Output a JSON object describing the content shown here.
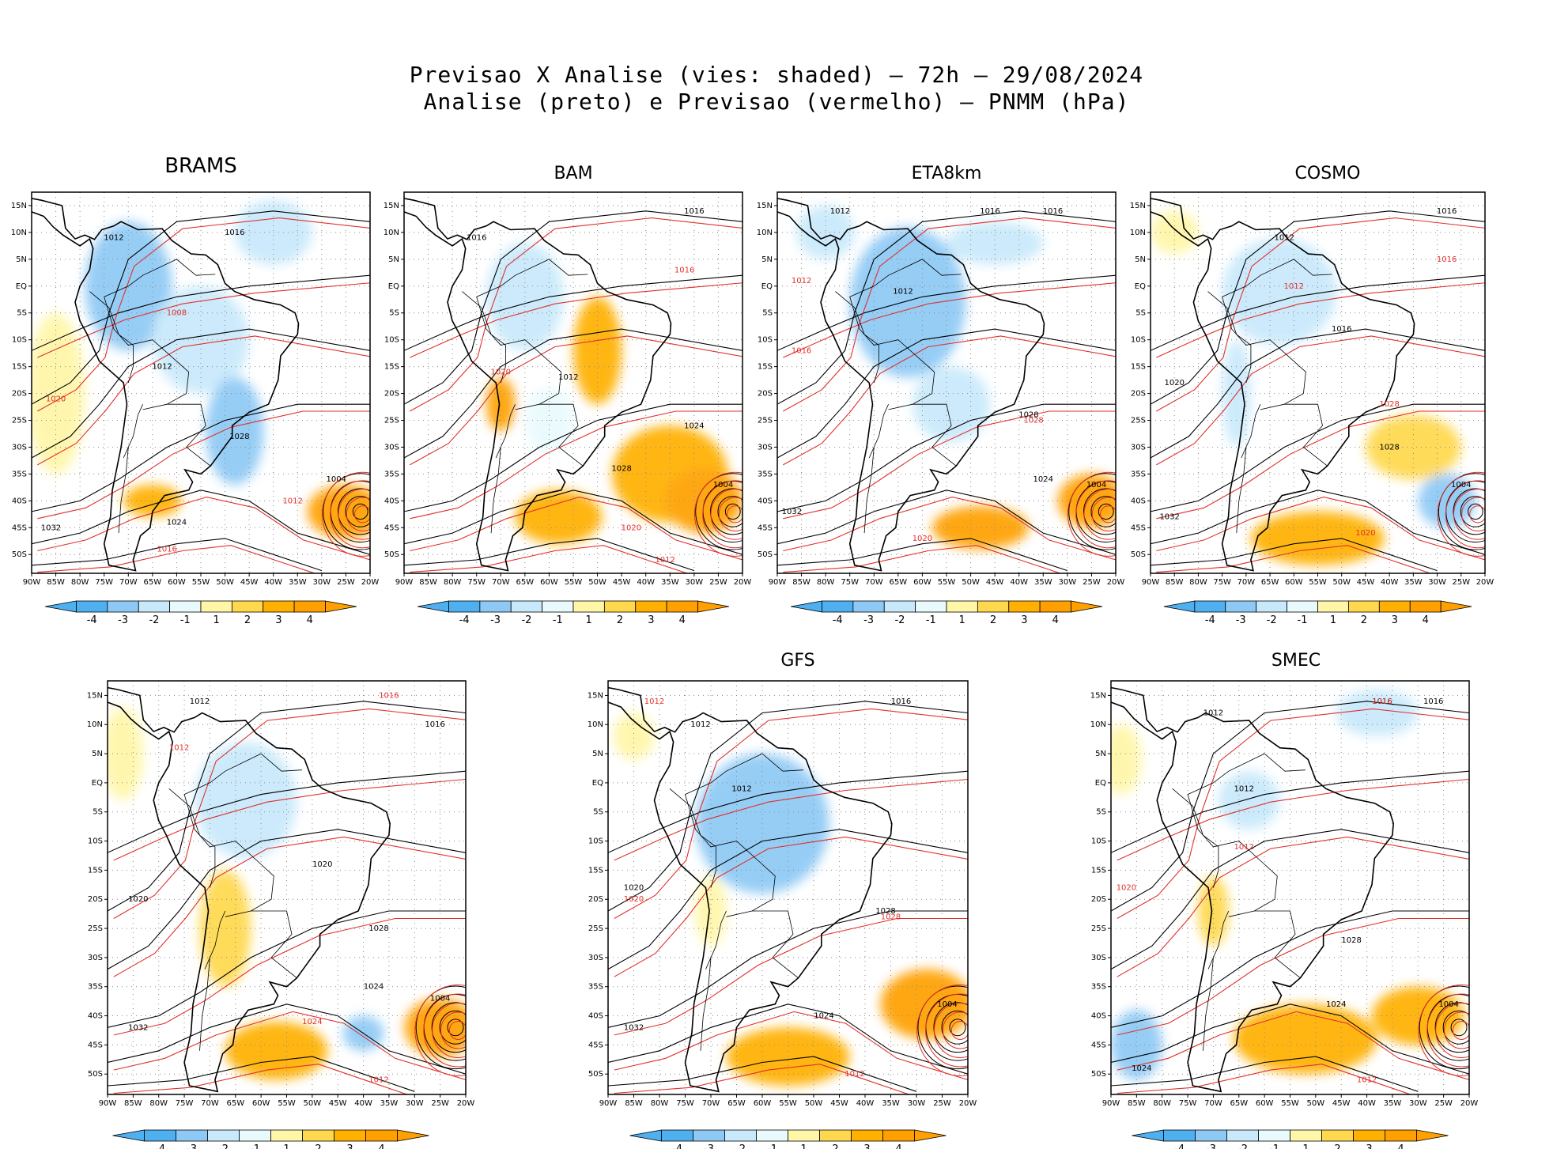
{
  "figure": {
    "title_line1": "Previsao X Analise (vies: shaded) – 72h – 29/08/2024",
    "title_line2": "Analise (preto) e Previsao (vermelho) – PNMM (hPa)"
  },
  "axes": {
    "lon_labels": [
      "90W",
      "85W",
      "80W",
      "75W",
      "70W",
      "65W",
      "60W",
      "55W",
      "50W",
      "45W",
      "40W",
      "35W",
      "30W",
      "25W",
      "20W"
    ],
    "lat_labels": [
      "15N",
      "10N",
      "5N",
      "EQ",
      "5S",
      "10S",
      "15S",
      "20S",
      "25S",
      "30S",
      "35S",
      "40S",
      "45S",
      "50S"
    ]
  },
  "colorbar": {
    "labels": [
      "-4",
      "-3",
      "-2",
      "-1",
      "1",
      "2",
      "3",
      "4"
    ],
    "colors": [
      "#4fb0f0",
      "#8ec9f5",
      "#c8e9fb",
      "#e9fafd",
      "#ffffff",
      "#fff6a8",
      "#ffd84d",
      "#ffb000",
      "#ffa000"
    ]
  },
  "styles": {
    "analysis_color": "#000000",
    "forecast_color": "#e0302b",
    "grid_color": "#8a8a8a",
    "neg_shade": "#6ab8f0",
    "neg_shade_light": "#c6e6fb",
    "pos_shade": "#ffbf1f",
    "pos_shade_light": "#fff09a"
  },
  "panels": [
    {
      "name": "BRAMS",
      "bias": [
        {
          "lon": -70,
          "lat": 0,
          "rx": 9,
          "ry": 12,
          "v": -3
        },
        {
          "lon": -55,
          "lat": -10,
          "rx": 10,
          "ry": 10,
          "v": -2
        },
        {
          "lon": -48,
          "lat": -27,
          "rx": 6,
          "ry": 10,
          "v": -3
        },
        {
          "lon": -25,
          "lat": -42,
          "rx": 8,
          "ry": 5,
          "v": 4
        },
        {
          "lon": -65,
          "lat": -40,
          "rx": 6,
          "ry": 3,
          "v": 3
        },
        {
          "lon": -85,
          "lat": -20,
          "rx": 6,
          "ry": 15,
          "v": 1
        },
        {
          "lon": -40,
          "lat": 10,
          "rx": 8,
          "ry": 6,
          "v": -2
        }
      ],
      "labels": [
        {
          "lon": -73,
          "lat": 9,
          "t": "1012",
          "c": "a"
        },
        {
          "lon": -48,
          "lat": 10,
          "t": "1016",
          "c": "a"
        },
        {
          "lon": -63,
          "lat": -15,
          "t": "1012",
          "c": "a"
        },
        {
          "lon": -47,
          "lat": -28,
          "t": "1028",
          "c": "a"
        },
        {
          "lon": -27,
          "lat": -36,
          "t": "1004",
          "c": "a"
        },
        {
          "lon": -60,
          "lat": -44,
          "t": "1024",
          "c": "a"
        },
        {
          "lon": -86,
          "lat": -45,
          "t": "1032",
          "c": "a"
        },
        {
          "lon": -60,
          "lat": -5,
          "t": "1008",
          "c": "f"
        },
        {
          "lon": -85,
          "lat": -21,
          "t": "1020",
          "c": "f"
        },
        {
          "lon": -36,
          "lat": -40,
          "t": "1012",
          "c": "f"
        },
        {
          "lon": -62,
          "lat": -49,
          "t": "1016",
          "c": "f"
        }
      ]
    },
    {
      "name": "BAM",
      "bias": [
        {
          "lon": -65,
          "lat": -2,
          "rx": 8,
          "ry": 10,
          "v": -2
        },
        {
          "lon": -50,
          "lat": -12,
          "rx": 5,
          "ry": 10,
          "v": 3
        },
        {
          "lon": -35,
          "lat": -35,
          "rx": 12,
          "ry": 9,
          "v": 3
        },
        {
          "lon": -28,
          "lat": -40,
          "rx": 8,
          "ry": 6,
          "v": 4
        },
        {
          "lon": -58,
          "lat": -43,
          "rx": 9,
          "ry": 5,
          "v": 3
        },
        {
          "lon": -70,
          "lat": -22,
          "rx": 3,
          "ry": 5,
          "v": 4
        },
        {
          "lon": -60,
          "lat": -25,
          "rx": 5,
          "ry": 6,
          "v": -1
        }
      ],
      "labels": [
        {
          "lon": -30,
          "lat": 14,
          "t": "1016",
          "c": "a"
        },
        {
          "lon": -75,
          "lat": 9,
          "t": "1016",
          "c": "a"
        },
        {
          "lon": -56,
          "lat": -17,
          "t": "1012",
          "c": "a"
        },
        {
          "lon": -30,
          "lat": -26,
          "t": "1024",
          "c": "a"
        },
        {
          "lon": -45,
          "lat": -34,
          "t": "1028",
          "c": "a"
        },
        {
          "lon": -24,
          "lat": -37,
          "t": "1004",
          "c": "a"
        },
        {
          "lon": -70,
          "lat": -16,
          "t": "1020",
          "c": "f"
        },
        {
          "lon": -32,
          "lat": 3,
          "t": "1016",
          "c": "f"
        },
        {
          "lon": -43,
          "lat": -45,
          "t": "1020",
          "c": "f"
        },
        {
          "lon": -36,
          "lat": -51,
          "t": "1012",
          "c": "f"
        }
      ]
    },
    {
      "name": "ETA8km",
      "bias": [
        {
          "lon": -63,
          "lat": -3,
          "rx": 12,
          "ry": 14,
          "v": -3
        },
        {
          "lon": -54,
          "lat": -22,
          "rx": 8,
          "ry": 7,
          "v": -2
        },
        {
          "lon": -48,
          "lat": -45,
          "rx": 10,
          "ry": 4,
          "v": 4
        },
        {
          "lon": -25,
          "lat": -40,
          "rx": 7,
          "ry": 5,
          "v": 4
        },
        {
          "lon": -45,
          "lat": 8,
          "rx": 10,
          "ry": 4,
          "v": -2
        },
        {
          "lon": -80,
          "lat": 10,
          "rx": 6,
          "ry": 5,
          "v": -2
        }
      ],
      "labels": [
        {
          "lon": -77,
          "lat": 14,
          "t": "1012",
          "c": "a"
        },
        {
          "lon": -46,
          "lat": 14,
          "t": "1016",
          "c": "a"
        },
        {
          "lon": -33,
          "lat": 14,
          "t": "1016",
          "c": "a"
        },
        {
          "lon": -64,
          "lat": -1,
          "t": "1012",
          "c": "a"
        },
        {
          "lon": -38,
          "lat": -24,
          "t": "1028",
          "c": "a"
        },
        {
          "lon": -35,
          "lat": -36,
          "t": "1024",
          "c": "a"
        },
        {
          "lon": -24,
          "lat": -37,
          "t": "1004",
          "c": "a"
        },
        {
          "lon": -87,
          "lat": -42,
          "t": "1032",
          "c": "a"
        },
        {
          "lon": -85,
          "lat": 1,
          "t": "1012",
          "c": "f"
        },
        {
          "lon": -85,
          "lat": -12,
          "t": "1016",
          "c": "f"
        },
        {
          "lon": -60,
          "lat": -47,
          "t": "1020",
          "c": "f"
        },
        {
          "lon": -37,
          "lat": -25,
          "t": "1028",
          "c": "f"
        }
      ]
    },
    {
      "name": "COSMO",
      "bias": [
        {
          "lon": -63,
          "lat": -1,
          "rx": 12,
          "ry": 10,
          "v": -2
        },
        {
          "lon": -55,
          "lat": -47,
          "rx": 14,
          "ry": 5,
          "v": 3
        },
        {
          "lon": -35,
          "lat": -30,
          "rx": 10,
          "ry": 6,
          "v": 2
        },
        {
          "lon": -28,
          "lat": -40,
          "rx": 6,
          "ry": 5,
          "v": -3
        },
        {
          "lon": -72,
          "lat": -20,
          "rx": 3,
          "ry": 10,
          "v": -2
        },
        {
          "lon": -85,
          "lat": 10,
          "rx": 5,
          "ry": 4,
          "v": 1
        }
      ],
      "labels": [
        {
          "lon": -28,
          "lat": 14,
          "t": "1016",
          "c": "a"
        },
        {
          "lon": -62,
          "lat": 9,
          "t": "1012",
          "c": "a"
        },
        {
          "lon": -50,
          "lat": -8,
          "t": "1016",
          "c": "a"
        },
        {
          "lon": -40,
          "lat": -30,
          "t": "1028",
          "c": "a"
        },
        {
          "lon": -25,
          "lat": -37,
          "t": "1004",
          "c": "a"
        },
        {
          "lon": -86,
          "lat": -43,
          "t": "1032",
          "c": "a"
        },
        {
          "lon": -85,
          "lat": -18,
          "t": "1020",
          "c": "a"
        },
        {
          "lon": -28,
          "lat": 5,
          "t": "1016",
          "c": "f"
        },
        {
          "lon": -60,
          "lat": 0,
          "t": "1012",
          "c": "f"
        },
        {
          "lon": -40,
          "lat": -22,
          "t": "1028",
          "c": "f"
        },
        {
          "lon": -45,
          "lat": -46,
          "t": "1020",
          "c": "f"
        }
      ]
    },
    {
      "name": "",
      "bias": [
        {
          "lon": -63,
          "lat": -3,
          "rx": 10,
          "ry": 10,
          "v": -2
        },
        {
          "lon": -67,
          "lat": -25,
          "rx": 5,
          "ry": 10,
          "v": 2
        },
        {
          "lon": -57,
          "lat": -46,
          "rx": 10,
          "ry": 5,
          "v": 3
        },
        {
          "lon": -25,
          "lat": -42,
          "rx": 7,
          "ry": 5,
          "v": 4
        },
        {
          "lon": -40,
          "lat": -43,
          "rx": 4,
          "ry": 3,
          "v": -3
        },
        {
          "lon": -87,
          "lat": 5,
          "rx": 4,
          "ry": 8,
          "v": 1
        }
      ],
      "labels": [
        {
          "lon": -72,
          "lat": 14,
          "t": "1012",
          "c": "a"
        },
        {
          "lon": -26,
          "lat": 10,
          "t": "1016",
          "c": "a"
        },
        {
          "lon": -48,
          "lat": -14,
          "t": "1020",
          "c": "a"
        },
        {
          "lon": -37,
          "lat": -25,
          "t": "1028",
          "c": "a"
        },
        {
          "lon": -38,
          "lat": -35,
          "t": "1024",
          "c": "a"
        },
        {
          "lon": -25,
          "lat": -37,
          "t": "1004",
          "c": "a"
        },
        {
          "lon": -84,
          "lat": -42,
          "t": "1032",
          "c": "a"
        },
        {
          "lon": -84,
          "lat": -20,
          "t": "1020",
          "c": "a"
        },
        {
          "lon": -35,
          "lat": 15,
          "t": "1016",
          "c": "f"
        },
        {
          "lon": -76,
          "lat": 6,
          "t": "1012",
          "c": "f"
        },
        {
          "lon": -50,
          "lat": -41,
          "t": "1024",
          "c": "f"
        },
        {
          "lon": -37,
          "lat": -51,
          "t": "1012",
          "c": "f"
        }
      ]
    },
    {
      "name": "GFS",
      "bias": [
        {
          "lon": -60,
          "lat": -7,
          "rx": 13,
          "ry": 12,
          "v": -3
        },
        {
          "lon": -55,
          "lat": -47,
          "rx": 12,
          "ry": 5,
          "v": 3
        },
        {
          "lon": -28,
          "lat": -38,
          "rx": 9,
          "ry": 6,
          "v": 4
        },
        {
          "lon": -85,
          "lat": 8,
          "rx": 4,
          "ry": 4,
          "v": 1
        },
        {
          "lon": -70,
          "lat": -22,
          "rx": 3,
          "ry": 6,
          "v": 1
        }
      ],
      "labels": [
        {
          "lon": -33,
          "lat": 14,
          "t": "1016",
          "c": "a"
        },
        {
          "lon": -72,
          "lat": 10,
          "t": "1012",
          "c": "a"
        },
        {
          "lon": -64,
          "lat": -1,
          "t": "1012",
          "c": "a"
        },
        {
          "lon": -85,
          "lat": -18,
          "t": "1020",
          "c": "a"
        },
        {
          "lon": -36,
          "lat": -22,
          "t": "1028",
          "c": "a"
        },
        {
          "lon": -24,
          "lat": -38,
          "t": "1004",
          "c": "a"
        },
        {
          "lon": -85,
          "lat": -42,
          "t": "1032",
          "c": "a"
        },
        {
          "lon": -48,
          "lat": -40,
          "t": "1024",
          "c": "a"
        },
        {
          "lon": -81,
          "lat": 14,
          "t": "1012",
          "c": "f"
        },
        {
          "lon": -85,
          "lat": -20,
          "t": "1020",
          "c": "f"
        },
        {
          "lon": -35,
          "lat": -23,
          "t": "1028",
          "c": "f"
        },
        {
          "lon": -42,
          "lat": -50,
          "t": "1012",
          "c": "f"
        }
      ]
    },
    {
      "name": "SMEC",
      "bias": [
        {
          "lon": -38,
          "lat": 12,
          "rx": 8,
          "ry": 4,
          "v": -2
        },
        {
          "lon": -63,
          "lat": -3,
          "rx": 6,
          "ry": 5,
          "v": -2
        },
        {
          "lon": -52,
          "lat": -44,
          "rx": 14,
          "ry": 6,
          "v": 3
        },
        {
          "lon": -30,
          "lat": -40,
          "rx": 9,
          "ry": 5,
          "v": 3
        },
        {
          "lon": -85,
          "lat": -45,
          "rx": 5,
          "ry": 6,
          "v": -3
        },
        {
          "lon": -70,
          "lat": -22,
          "rx": 3,
          "ry": 6,
          "v": 2
        },
        {
          "lon": -88,
          "lat": 4,
          "rx": 4,
          "ry": 6,
          "v": 1
        }
      ],
      "labels": [
        {
          "lon": -37,
          "lat": 14,
          "t": "1016",
          "c": "a"
        },
        {
          "lon": -27,
          "lat": 14,
          "t": "1016",
          "c": "a"
        },
        {
          "lon": -70,
          "lat": 12,
          "t": "1012",
          "c": "a"
        },
        {
          "lon": -64,
          "lat": -1,
          "t": "1012",
          "c": "a"
        },
        {
          "lon": -43,
          "lat": -27,
          "t": "1028",
          "c": "a"
        },
        {
          "lon": -46,
          "lat": -38,
          "t": "1024",
          "c": "a"
        },
        {
          "lon": -24,
          "lat": -38,
          "t": "1004",
          "c": "a"
        },
        {
          "lon": -84,
          "lat": -49,
          "t": "1024",
          "c": "a"
        },
        {
          "lon": -37,
          "lat": 14,
          "t": "1016",
          "c": "f"
        },
        {
          "lon": -87,
          "lat": -18,
          "t": "1020",
          "c": "f"
        },
        {
          "lon": -64,
          "lat": -11,
          "t": "1012",
          "c": "f"
        },
        {
          "lon": -40,
          "lat": -51,
          "t": "1012",
          "c": "f"
        }
      ]
    }
  ]
}
